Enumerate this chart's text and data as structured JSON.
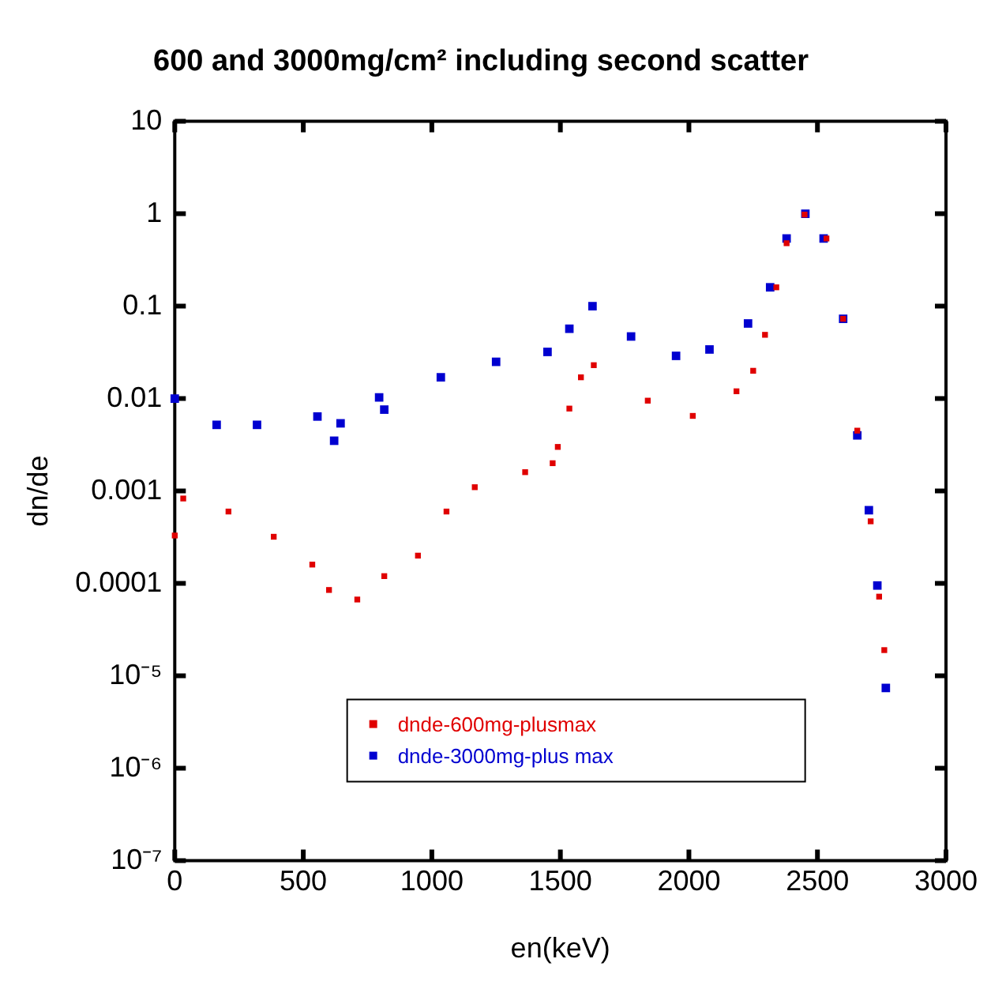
{
  "chart_data": {
    "type": "scatter",
    "title": "600 and 3000mg/cm² including second scatter",
    "xlabel": "en(keV)",
    "ylabel": "dn/de",
    "log": "y",
    "xlim": [
      0,
      3000
    ],
    "xticks": [
      0,
      500,
      1000,
      1500,
      2000,
      2500,
      3000
    ],
    "ylim": [
      1e-07,
      10
    ],
    "yticks": [
      10,
      1,
      0.1,
      0.01,
      0.001,
      0.0001,
      {
        "value": 1e-05,
        "label": "10⁻⁵"
      },
      {
        "value": 1e-06,
        "label": "10⁻⁶"
      },
      {
        "value": 1e-07,
        "label": "10⁻⁷"
      }
    ],
    "grid": false,
    "legend": "bottom",
    "marker": "square",
    "series": [
      {
        "name": "dnde-600mg-plusmax",
        "color": "#e00000",
        "x": [
          0,
          33,
          209,
          385,
          535,
          600,
          710,
          815,
          946,
          1057,
          1167,
          1363,
          1470,
          1490,
          1535,
          1580,
          1630,
          1840,
          2015,
          2185,
          2250,
          2296,
          2340,
          2380,
          2450,
          2535,
          2600,
          2655,
          2707,
          2740,
          2760
        ],
        "values": [
          0.00033,
          0.00083,
          0.0006,
          0.00032,
          0.00016,
          8.5e-05,
          6.7e-05,
          0.00012,
          0.0002,
          0.0006,
          0.0011,
          0.0016,
          0.002,
          0.003,
          0.0078,
          0.017,
          0.023,
          0.0095,
          0.0065,
          0.012,
          0.02,
          0.049,
          0.16,
          0.48,
          0.98,
          0.54,
          0.073,
          0.0045,
          0.00047,
          7.2e-05,
          1.9e-05
        ]
      },
      {
        "name": "dnde-3000mg-plus max",
        "color": "#0000d0",
        "x": [
          0,
          163,
          320,
          555,
          620,
          645,
          795,
          815,
          1035,
          1250,
          1450,
          1535,
          1625,
          1775,
          1950,
          2080,
          2230,
          2316,
          2380,
          2453,
          2524,
          2600,
          2655,
          2700,
          2733,
          2766
        ],
        "values": [
          0.01,
          0.0052,
          0.0052,
          0.0064,
          0.0035,
          0.0054,
          0.0103,
          0.0076,
          0.017,
          0.025,
          0.032,
          0.057,
          0.1,
          0.047,
          0.029,
          0.034,
          0.065,
          0.16,
          0.54,
          1,
          0.54,
          0.073,
          0.004,
          0.00062,
          9.5e-05,
          7.4e-06
        ]
      }
    ]
  }
}
